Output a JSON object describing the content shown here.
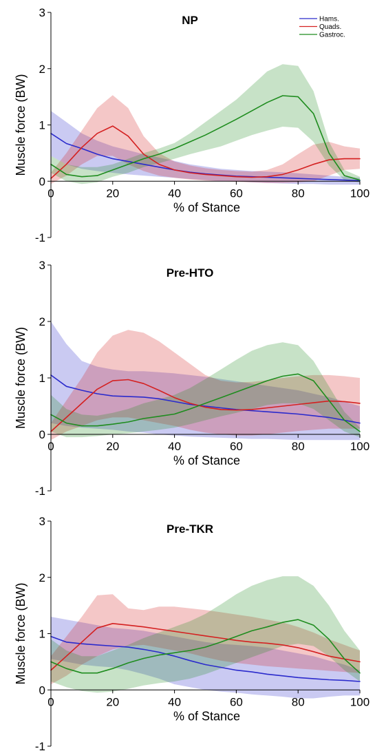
{
  "chart_data": [
    {
      "type": "line",
      "title": "NP",
      "xlabel": "% of Stance",
      "ylabel": "Muscle force (BW)",
      "xlim": [
        0,
        100
      ],
      "ylim": [
        -1,
        3
      ],
      "xticks": [
        0,
        20,
        40,
        60,
        80,
        100
      ],
      "yticks": [
        -1,
        0,
        1,
        2,
        3
      ],
      "legend": {
        "position": "top-right",
        "entries": [
          "Hams.",
          "Quads.",
          "Gastroc."
        ]
      },
      "x": [
        0,
        5,
        10,
        15,
        20,
        25,
        30,
        35,
        40,
        45,
        50,
        55,
        60,
        65,
        70,
        75,
        80,
        85,
        90,
        95,
        100
      ],
      "series": [
        {
          "name": "Hams.",
          "color": "#2a2acc",
          "values": [
            0.85,
            0.67,
            0.58,
            0.48,
            0.4,
            0.35,
            0.3,
            0.25,
            0.2,
            0.16,
            0.13,
            0.11,
            0.09,
            0.08,
            0.07,
            0.06,
            0.05,
            0.04,
            0.03,
            0.02,
            0.01
          ],
          "upper": [
            1.25,
            1.05,
            0.85,
            0.72,
            0.62,
            0.55,
            0.48,
            0.42,
            0.36,
            0.3,
            0.26,
            0.22,
            0.2,
            0.18,
            0.17,
            0.16,
            0.14,
            0.12,
            0.1,
            0.08,
            0.06
          ],
          "lower": [
            0.45,
            0.3,
            0.22,
            0.18,
            0.15,
            0.12,
            0.1,
            0.08,
            0.06,
            0.04,
            0.02,
            0.0,
            0.0,
            -0.02,
            -0.03,
            -0.04,
            -0.05,
            -0.05,
            -0.06,
            -0.06,
            -0.06
          ]
        },
        {
          "name": "Quads.",
          "color": "#d42020",
          "values": [
            0.05,
            0.3,
            0.6,
            0.85,
            0.98,
            0.8,
            0.48,
            0.3,
            0.2,
            0.15,
            0.12,
            0.1,
            0.08,
            0.07,
            0.08,
            0.12,
            0.2,
            0.3,
            0.38,
            0.4,
            0.4
          ],
          "upper": [
            0.15,
            0.5,
            0.9,
            1.3,
            1.53,
            1.3,
            0.8,
            0.5,
            0.35,
            0.28,
            0.23,
            0.2,
            0.18,
            0.17,
            0.2,
            0.3,
            0.48,
            0.65,
            0.7,
            0.62,
            0.58
          ],
          "lower": [
            -0.05,
            0.1,
            0.3,
            0.45,
            0.45,
            0.3,
            0.18,
            0.1,
            0.06,
            0.03,
            0.01,
            0.0,
            -0.01,
            -0.02,
            -0.03,
            -0.03,
            -0.02,
            0.0,
            0.1,
            0.2,
            0.22
          ]
        },
        {
          "name": "Gastroc.",
          "color": "#1e8c1e",
          "values": [
            0.3,
            0.12,
            0.08,
            0.1,
            0.2,
            0.3,
            0.4,
            0.48,
            0.58,
            0.7,
            0.82,
            0.96,
            1.1,
            1.25,
            1.4,
            1.52,
            1.5,
            1.2,
            0.5,
            0.1,
            0.02
          ],
          "upper": [
            0.45,
            0.3,
            0.25,
            0.25,
            0.3,
            0.4,
            0.5,
            0.58,
            0.68,
            0.85,
            1.05,
            1.25,
            1.45,
            1.7,
            1.95,
            2.08,
            2.05,
            1.6,
            0.7,
            0.2,
            0.08
          ],
          "lower": [
            0.15,
            0.0,
            -0.05,
            -0.02,
            0.08,
            0.15,
            0.25,
            0.32,
            0.4,
            0.48,
            0.55,
            0.62,
            0.72,
            0.82,
            0.9,
            0.97,
            0.95,
            0.7,
            0.28,
            0.02,
            -0.02
          ]
        }
      ]
    },
    {
      "type": "line",
      "title": "Pre-HTO",
      "xlabel": "% of Stance",
      "ylabel": "Muscle force (BW)",
      "xlim": [
        0,
        100
      ],
      "ylim": [
        -1,
        3
      ],
      "xticks": [
        0,
        20,
        40,
        60,
        80,
        100
      ],
      "yticks": [
        -1,
        0,
        1,
        2,
        3
      ],
      "x": [
        0,
        5,
        10,
        15,
        20,
        25,
        30,
        35,
        40,
        45,
        50,
        55,
        60,
        65,
        70,
        75,
        80,
        85,
        90,
        95,
        100
      ],
      "series": [
        {
          "name": "Hams.",
          "color": "#2a2acc",
          "values": [
            1.05,
            0.85,
            0.78,
            0.72,
            0.68,
            0.67,
            0.66,
            0.63,
            0.58,
            0.53,
            0.5,
            0.47,
            0.44,
            0.42,
            0.4,
            0.38,
            0.36,
            0.33,
            0.3,
            0.25,
            0.2
          ],
          "upper": [
            2.0,
            1.6,
            1.3,
            1.2,
            1.15,
            1.12,
            1.12,
            1.1,
            1.08,
            1.05,
            1.02,
            0.98,
            0.94,
            0.9,
            0.86,
            0.82,
            0.78,
            0.72,
            0.66,
            0.58,
            0.5
          ],
          "lower": [
            0.2,
            0.15,
            0.12,
            0.1,
            0.08,
            0.05,
            0.03,
            0.0,
            -0.02,
            -0.04,
            -0.05,
            -0.06,
            -0.07,
            -0.08,
            -0.08,
            -0.09,
            -0.1,
            -0.1,
            -0.1,
            -0.1,
            -0.1
          ]
        },
        {
          "name": "Quads.",
          "color": "#d42020",
          "values": [
            0.05,
            0.3,
            0.55,
            0.8,
            0.95,
            0.97,
            0.9,
            0.78,
            0.65,
            0.55,
            0.48,
            0.44,
            0.43,
            0.44,
            0.47,
            0.5,
            0.53,
            0.56,
            0.59,
            0.58,
            0.55
          ],
          "upper": [
            0.2,
            0.6,
            1.0,
            1.45,
            1.75,
            1.85,
            1.8,
            1.65,
            1.45,
            1.25,
            1.05,
            0.95,
            0.92,
            0.93,
            0.96,
            1.0,
            1.03,
            1.05,
            1.05,
            1.03,
            1.0
          ],
          "lower": [
            -0.1,
            0.05,
            0.15,
            0.25,
            0.3,
            0.3,
            0.25,
            0.2,
            0.15,
            0.08,
            0.03,
            0.0,
            -0.02,
            -0.02,
            0.0,
            0.03,
            0.06,
            0.08,
            0.1,
            0.1,
            0.1
          ]
        },
        {
          "name": "Gastroc.",
          "color": "#1e8c1e",
          "values": [
            0.35,
            0.2,
            0.15,
            0.15,
            0.18,
            0.22,
            0.28,
            0.32,
            0.36,
            0.45,
            0.55,
            0.65,
            0.75,
            0.85,
            0.95,
            1.03,
            1.07,
            0.95,
            0.6,
            0.25,
            0.05
          ],
          "upper": [
            0.7,
            0.45,
            0.35,
            0.33,
            0.38,
            0.45,
            0.55,
            0.62,
            0.7,
            0.82,
            0.98,
            1.15,
            1.32,
            1.48,
            1.58,
            1.63,
            1.58,
            1.3,
            0.85,
            0.4,
            0.12
          ],
          "lower": [
            0.05,
            -0.05,
            -0.05,
            -0.03,
            0.0,
            0.02,
            0.05,
            0.08,
            0.12,
            0.18,
            0.25,
            0.32,
            0.38,
            0.45,
            0.52,
            0.55,
            0.55,
            0.45,
            0.25,
            0.05,
            -0.05
          ]
        }
      ]
    },
    {
      "type": "line",
      "title": "Pre-TKR",
      "xlabel": "% of Stance",
      "ylabel": "Muscle force (BW)",
      "xlim": [
        0,
        100
      ],
      "ylim": [
        -1,
        3
      ],
      "xticks": [
        0,
        20,
        40,
        60,
        80,
        100
      ],
      "yticks": [
        -1,
        0,
        1,
        2,
        3
      ],
      "x": [
        0,
        5,
        10,
        15,
        20,
        25,
        30,
        35,
        40,
        45,
        50,
        55,
        60,
        65,
        70,
        75,
        80,
        85,
        90,
        95,
        100
      ],
      "series": [
        {
          "name": "Hams.",
          "color": "#2a2acc",
          "values": [
            0.95,
            0.85,
            0.82,
            0.8,
            0.78,
            0.76,
            0.72,
            0.67,
            0.6,
            0.52,
            0.45,
            0.4,
            0.35,
            0.32,
            0.28,
            0.25,
            0.22,
            0.2,
            0.18,
            0.17,
            0.15
          ],
          "upper": [
            1.3,
            1.25,
            1.2,
            1.15,
            1.1,
            1.08,
            1.05,
            1.0,
            0.95,
            0.9,
            0.85,
            0.82,
            0.8,
            0.78,
            0.75,
            0.7,
            0.65,
            0.6,
            0.52,
            0.45,
            0.35
          ],
          "lower": [
            0.55,
            0.5,
            0.45,
            0.42,
            0.4,
            0.35,
            0.28,
            0.2,
            0.1,
            0.05,
            0.0,
            -0.03,
            -0.05,
            -0.08,
            -0.1,
            -0.12,
            -0.15,
            -0.15,
            -0.12,
            -0.1,
            -0.1
          ]
        },
        {
          "name": "Quads.",
          "color": "#d42020",
          "values": [
            0.35,
            0.6,
            0.85,
            1.1,
            1.18,
            1.15,
            1.12,
            1.08,
            1.04,
            1.0,
            0.96,
            0.92,
            0.88,
            0.85,
            0.83,
            0.8,
            0.75,
            0.68,
            0.6,
            0.55,
            0.5
          ],
          "upper": [
            0.6,
            0.95,
            1.3,
            1.68,
            1.7,
            1.45,
            1.42,
            1.48,
            1.48,
            1.45,
            1.42,
            1.38,
            1.34,
            1.3,
            1.25,
            1.2,
            1.12,
            1.02,
            0.9,
            0.8,
            0.7
          ],
          "lower": [
            0.1,
            0.25,
            0.45,
            0.6,
            0.72,
            0.78,
            0.8,
            0.75,
            0.7,
            0.65,
            0.58,
            0.52,
            0.48,
            0.45,
            0.42,
            0.4,
            0.38,
            0.36,
            0.34,
            0.32,
            0.3
          ]
        },
        {
          "name": "Gastroc.",
          "color": "#1e8c1e",
          "values": [
            0.5,
            0.38,
            0.3,
            0.3,
            0.38,
            0.48,
            0.56,
            0.62,
            0.66,
            0.7,
            0.76,
            0.85,
            0.95,
            1.05,
            1.12,
            1.2,
            1.25,
            1.15,
            0.9,
            0.55,
            0.3
          ],
          "upper": [
            0.9,
            0.7,
            0.6,
            0.6,
            0.7,
            0.8,
            0.92,
            1.02,
            1.12,
            1.22,
            1.35,
            1.52,
            1.7,
            1.85,
            1.95,
            2.02,
            2.02,
            1.85,
            1.5,
            1.05,
            0.7
          ],
          "lower": [
            0.15,
            0.05,
            -0.02,
            -0.05,
            -0.03,
            0.02,
            0.08,
            0.12,
            0.15,
            0.2,
            0.28,
            0.38,
            0.48,
            0.58,
            0.68,
            0.78,
            0.82,
            0.78,
            0.6,
            0.35,
            0.15
          ]
        }
      ]
    }
  ]
}
